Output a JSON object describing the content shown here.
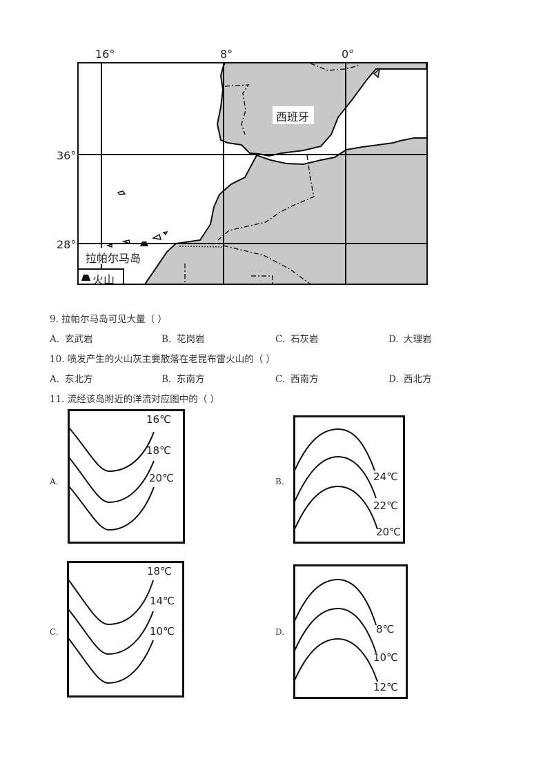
{
  "map": {
    "lon_labels": [
      "16°",
      "8°",
      "0°"
    ],
    "lat_labels": [
      "36°",
      "28°"
    ],
    "country_label": "西班牙",
    "island_label": "拉帕尔马岛",
    "legend_label": "火山",
    "legend_icon": "volcano-triangle-icon",
    "land_color": "#c8c8c8"
  },
  "questions": [
    {
      "text": "9.  拉帕尔马岛可见大量（    ）",
      "options": [
        {
          "key": "A.",
          "text": "玄武岩"
        },
        {
          "key": "B.",
          "text": "花岗岩"
        },
        {
          "key": "C.",
          "text": "石灰岩"
        },
        {
          "key": "D.",
          "text": "大理岩"
        }
      ]
    },
    {
      "text": "10.  喷发产生的火山灰主要散落在老昆布雷火山的（    ）",
      "options": [
        {
          "key": "A.",
          "text": "东北方"
        },
        {
          "key": "B.",
          "text": "东南方"
        },
        {
          "key": "C.",
          "text": "西南方"
        },
        {
          "key": "D.",
          "text": "西北方"
        }
      ]
    },
    {
      "text": "11.  流经该岛附近的洋流对应图中的（    ）"
    }
  ],
  "panels": [
    {
      "label": "A.",
      "isotherms": [
        "16℃",
        "18℃",
        "20℃"
      ]
    },
    {
      "label": "B.",
      "isotherms": [
        "24℃",
        "22℃",
        "20℃"
      ]
    },
    {
      "label": "C.",
      "isotherms": [
        "18℃",
        "14℃",
        "10℃"
      ]
    },
    {
      "label": "D.",
      "isotherms": [
        "8℃",
        "10℃",
        "12℃"
      ]
    }
  ]
}
